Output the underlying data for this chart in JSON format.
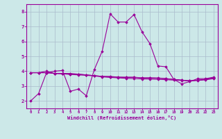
{
  "xlabel": "Windchill (Refroidissement éolien,°C)",
  "bg_color": "#cce8e8",
  "line_color": "#990099",
  "grid_color": "#aabbcc",
  "xlim": [
    -0.5,
    23.5
  ],
  "ylim": [
    1.5,
    8.5
  ],
  "xticks": [
    0,
    1,
    2,
    3,
    4,
    5,
    6,
    7,
    8,
    9,
    10,
    11,
    12,
    13,
    14,
    15,
    16,
    17,
    18,
    19,
    20,
    21,
    22,
    23
  ],
  "yticks": [
    2,
    3,
    4,
    5,
    6,
    7,
    8
  ],
  "lines": [
    [
      2.0,
      2.5,
      3.9,
      4.0,
      4.05,
      2.65,
      2.8,
      2.35,
      4.1,
      5.35,
      7.85,
      7.3,
      7.3,
      7.8,
      6.65,
      5.85,
      4.35,
      4.3,
      3.45,
      3.15,
      3.3,
      3.5,
      3.5,
      3.6
    ],
    [
      3.9,
      3.9,
      4.0,
      3.85,
      3.85,
      3.85,
      3.8,
      3.75,
      3.7,
      3.65,
      3.65,
      3.6,
      3.6,
      3.6,
      3.55,
      3.55,
      3.55,
      3.5,
      3.45,
      3.4,
      3.35,
      3.4,
      3.45,
      3.55
    ],
    [
      3.9,
      3.9,
      3.9,
      3.85,
      3.85,
      3.8,
      3.8,
      3.75,
      3.7,
      3.65,
      3.62,
      3.6,
      3.58,
      3.58,
      3.55,
      3.55,
      3.52,
      3.5,
      3.45,
      3.4,
      3.35,
      3.4,
      3.45,
      3.55
    ],
    [
      3.9,
      3.9,
      3.9,
      3.85,
      3.82,
      3.78,
      3.75,
      3.72,
      3.68,
      3.62,
      3.58,
      3.55,
      3.52,
      3.5,
      3.48,
      3.47,
      3.45,
      3.43,
      3.4,
      3.38,
      3.35,
      3.38,
      3.42,
      3.5
    ]
  ]
}
